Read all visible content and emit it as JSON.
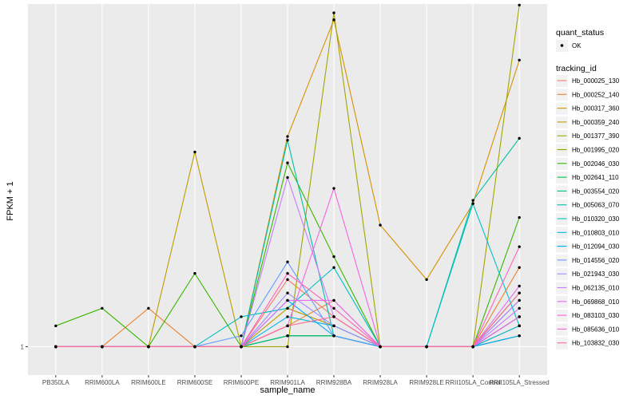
{
  "chart_data": {
    "type": "line",
    "title": "",
    "xlabel": "sample_name",
    "ylabel": "FPKM + 1",
    "categories": [
      "PB350LA",
      "RRIM600LA",
      "RRIM600LE",
      "RRIM600SE",
      "RRIM600PE",
      "RRIM901LA",
      "RRIM928BA",
      "RRIM928LA",
      "RRIM928LE",
      "RRII105LA_Control",
      "RRII105LA_Stressed"
    ],
    "y_tick_labels": [
      "1"
    ],
    "y_range": [
      0.78,
      20.1
    ],
    "grid": true,
    "legend": {
      "position": "right",
      "status_title": "quant_status",
      "status_entries": [
        "OK"
      ],
      "tracking_title": "tracking_id"
    },
    "series": [
      {
        "name": "Hb_000025_130",
        "color": "#F8766D",
        "values": [
          1,
          1,
          1,
          1,
          1,
          1.8,
          1.3,
          1,
          1,
          1,
          1.5
        ]
      },
      {
        "name": "Hb_000252_140",
        "color": "#EA8331",
        "values": [
          1,
          1,
          1.4,
          1,
          1,
          1.2,
          1.5,
          1,
          1,
          1,
          2.0
        ]
      },
      {
        "name": "Hb_000317_360",
        "color": "#D89000",
        "values": [
          1,
          1,
          1,
          1,
          1,
          6.3,
          17.5,
          2.9,
          1.8,
          3.5,
          12.3
        ]
      },
      {
        "name": "Hb_000359_240",
        "color": "#C09B00",
        "values": [
          1,
          1,
          1,
          5.5,
          1,
          1.4,
          1.2,
          1,
          1,
          1,
          1.2
        ]
      },
      {
        "name": "Hb_001377_390",
        "color": "#A3A500",
        "values": [
          1,
          1,
          1,
          1,
          1,
          1,
          18.6,
          1,
          1,
          1,
          19.9
        ]
      },
      {
        "name": "Hb_001995_020",
        "color": "#7CAE00",
        "values": [
          1,
          1,
          1,
          1,
          1,
          1.1,
          1.1,
          1,
          1,
          1,
          1.1
        ]
      },
      {
        "name": "Hb_002046_030",
        "color": "#39B600",
        "values": [
          1.2,
          1.4,
          1,
          1.9,
          1,
          5.0,
          2.2,
          1,
          1,
          1,
          3.1
        ]
      },
      {
        "name": "Hb_002641_110",
        "color": "#00BB4E",
        "values": [
          1,
          1,
          1,
          1,
          1,
          1.1,
          1.1,
          1,
          1,
          1,
          1.6
        ]
      },
      {
        "name": "Hb_003554_020",
        "color": "#00BF7D",
        "values": [
          1,
          1,
          1,
          1,
          1,
          1.1,
          1.1,
          1,
          1,
          1,
          1.3
        ]
      },
      {
        "name": "Hb_005063_070",
        "color": "#00C1A3",
        "values": [
          1,
          1,
          1,
          1,
          1,
          6.1,
          1.1,
          1,
          1,
          3.6,
          6.2
        ]
      },
      {
        "name": "Hb_010320_030",
        "color": "#00BFC4",
        "values": [
          1,
          1,
          1,
          1,
          1.3,
          1.4,
          2.0,
          1,
          1,
          3.5,
          1.2
        ]
      },
      {
        "name": "Hb_010803_010",
        "color": "#00B8E7",
        "values": [
          1,
          1,
          1,
          1,
          1,
          1.3,
          1.2,
          1,
          1,
          1,
          1.2
        ]
      },
      {
        "name": "Hb_012094_030",
        "color": "#00A9FF",
        "values": [
          1,
          1,
          1,
          1,
          1,
          1.5,
          1.1,
          1,
          1,
          1,
          1.1
        ]
      },
      {
        "name": "Hb_014556_020",
        "color": "#619CFF",
        "values": [
          1,
          1,
          1,
          1,
          1.1,
          2.1,
          1.1,
          1,
          1,
          1,
          1.3
        ]
      },
      {
        "name": "Hb_021943_030",
        "color": "#9F8CFF",
        "values": [
          1,
          1,
          1,
          1,
          1,
          1.6,
          1.2,
          1,
          1,
          1,
          1.5
        ]
      },
      {
        "name": "Hb_062135_010",
        "color": "#C77CFF",
        "values": [
          1,
          1,
          1,
          1,
          1,
          4.4,
          1.3,
          1,
          1,
          1,
          1.4
        ]
      },
      {
        "name": "Hb_069868_010",
        "color": "#E76BF3",
        "values": [
          1,
          1,
          1,
          1,
          1,
          1.5,
          1.5,
          1,
          1,
          1,
          1.7
        ]
      },
      {
        "name": "Hb_083103_030",
        "color": "#F763E0",
        "values": [
          1,
          1,
          1,
          1,
          1,
          1.2,
          4.0,
          1,
          1,
          1,
          1.3
        ]
      },
      {
        "name": "Hb_085636_010",
        "color": "#FF62BC",
        "values": [
          1,
          1,
          1,
          1,
          1,
          1.9,
          1.4,
          1,
          1,
          1,
          2.4
        ]
      },
      {
        "name": "Hb_103832_030",
        "color": "#FF6C91",
        "values": [
          1,
          1,
          1,
          1,
          1,
          1.2,
          1.3,
          1,
          1,
          1,
          1.6
        ]
      }
    ]
  }
}
